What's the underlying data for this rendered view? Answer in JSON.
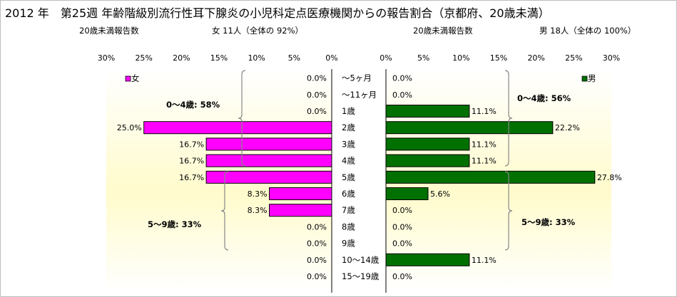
{
  "title": "2012 年　第25週 年齢階級別流行性耳下腺炎の小児科定点医療機関からの報告割合（京都府、20歳未満）",
  "subtitle_left": "20歳未満報告数",
  "subtitle_left_total": "女 11人（全体の 92%）",
  "subtitle_right": "20歳未満報告数",
  "subtitle_right_total": "男 18人（全体の 100%）",
  "chart_data": [
    {
      "type": "bar",
      "orientation": "horizontal",
      "direction": "right-to-left",
      "categories": [
        "～5ヶ月",
        "～11ヶ月",
        "1歳",
        "2歳",
        "3歳",
        "4歳",
        "5歳",
        "6歳",
        "7歳",
        "8歳",
        "9歳",
        "10～14歳",
        "15～19歳"
      ],
      "series": [
        {
          "name": "女",
          "color": "#ff00ff",
          "values": [
            0.0,
            0.0,
            0.0,
            25.0,
            16.7,
            16.7,
            16.7,
            8.3,
            8.3,
            0.0,
            0.0,
            0.0,
            0.0
          ],
          "value_labels": [
            "0.0%",
            "0.0%",
            "0.0%",
            "25.0%",
            "16.7%",
            "16.7%",
            "16.7%",
            "8.3%",
            "8.3%",
            "0.0%",
            "0.0%",
            "0.0%",
            "0.0%"
          ]
        }
      ],
      "xlim": [
        0,
        30
      ],
      "ticks": [
        "30%",
        "25%",
        "20%",
        "15%",
        "10%",
        "5%",
        "0%"
      ],
      "legend_position": "top-left",
      "annotations": [
        "0～4歳: 58%",
        "5～9歳: 33%"
      ]
    },
    {
      "type": "bar",
      "orientation": "horizontal",
      "direction": "left-to-right",
      "categories": [
        "～5ヶ月",
        "～11ヶ月",
        "1歳",
        "2歳",
        "3歳",
        "4歳",
        "5歳",
        "6歳",
        "7歳",
        "8歳",
        "9歳",
        "10～14歳",
        "15～19歳"
      ],
      "series": [
        {
          "name": "男",
          "color": "#007000",
          "values": [
            0.0,
            0.0,
            11.1,
            22.2,
            11.1,
            11.1,
            27.8,
            5.6,
            0.0,
            0.0,
            0.0,
            11.1,
            0.0
          ],
          "value_labels": [
            "0.0%",
            "0.0%",
            "11.1%",
            "22.2%",
            "11.1%",
            "11.1%",
            "27.8%",
            "5.6%",
            "0.0%",
            "0.0%",
            "0.0%",
            "11.1%",
            "0.0%"
          ]
        }
      ],
      "xlim": [
        0,
        30
      ],
      "ticks": [
        "0%",
        "5%",
        "10%",
        "15%",
        "20%",
        "25%",
        "30%"
      ],
      "legend_position": "top-right",
      "annotations": [
        "0～4歳: 56%",
        "5～9歳: 33%"
      ]
    }
  ]
}
